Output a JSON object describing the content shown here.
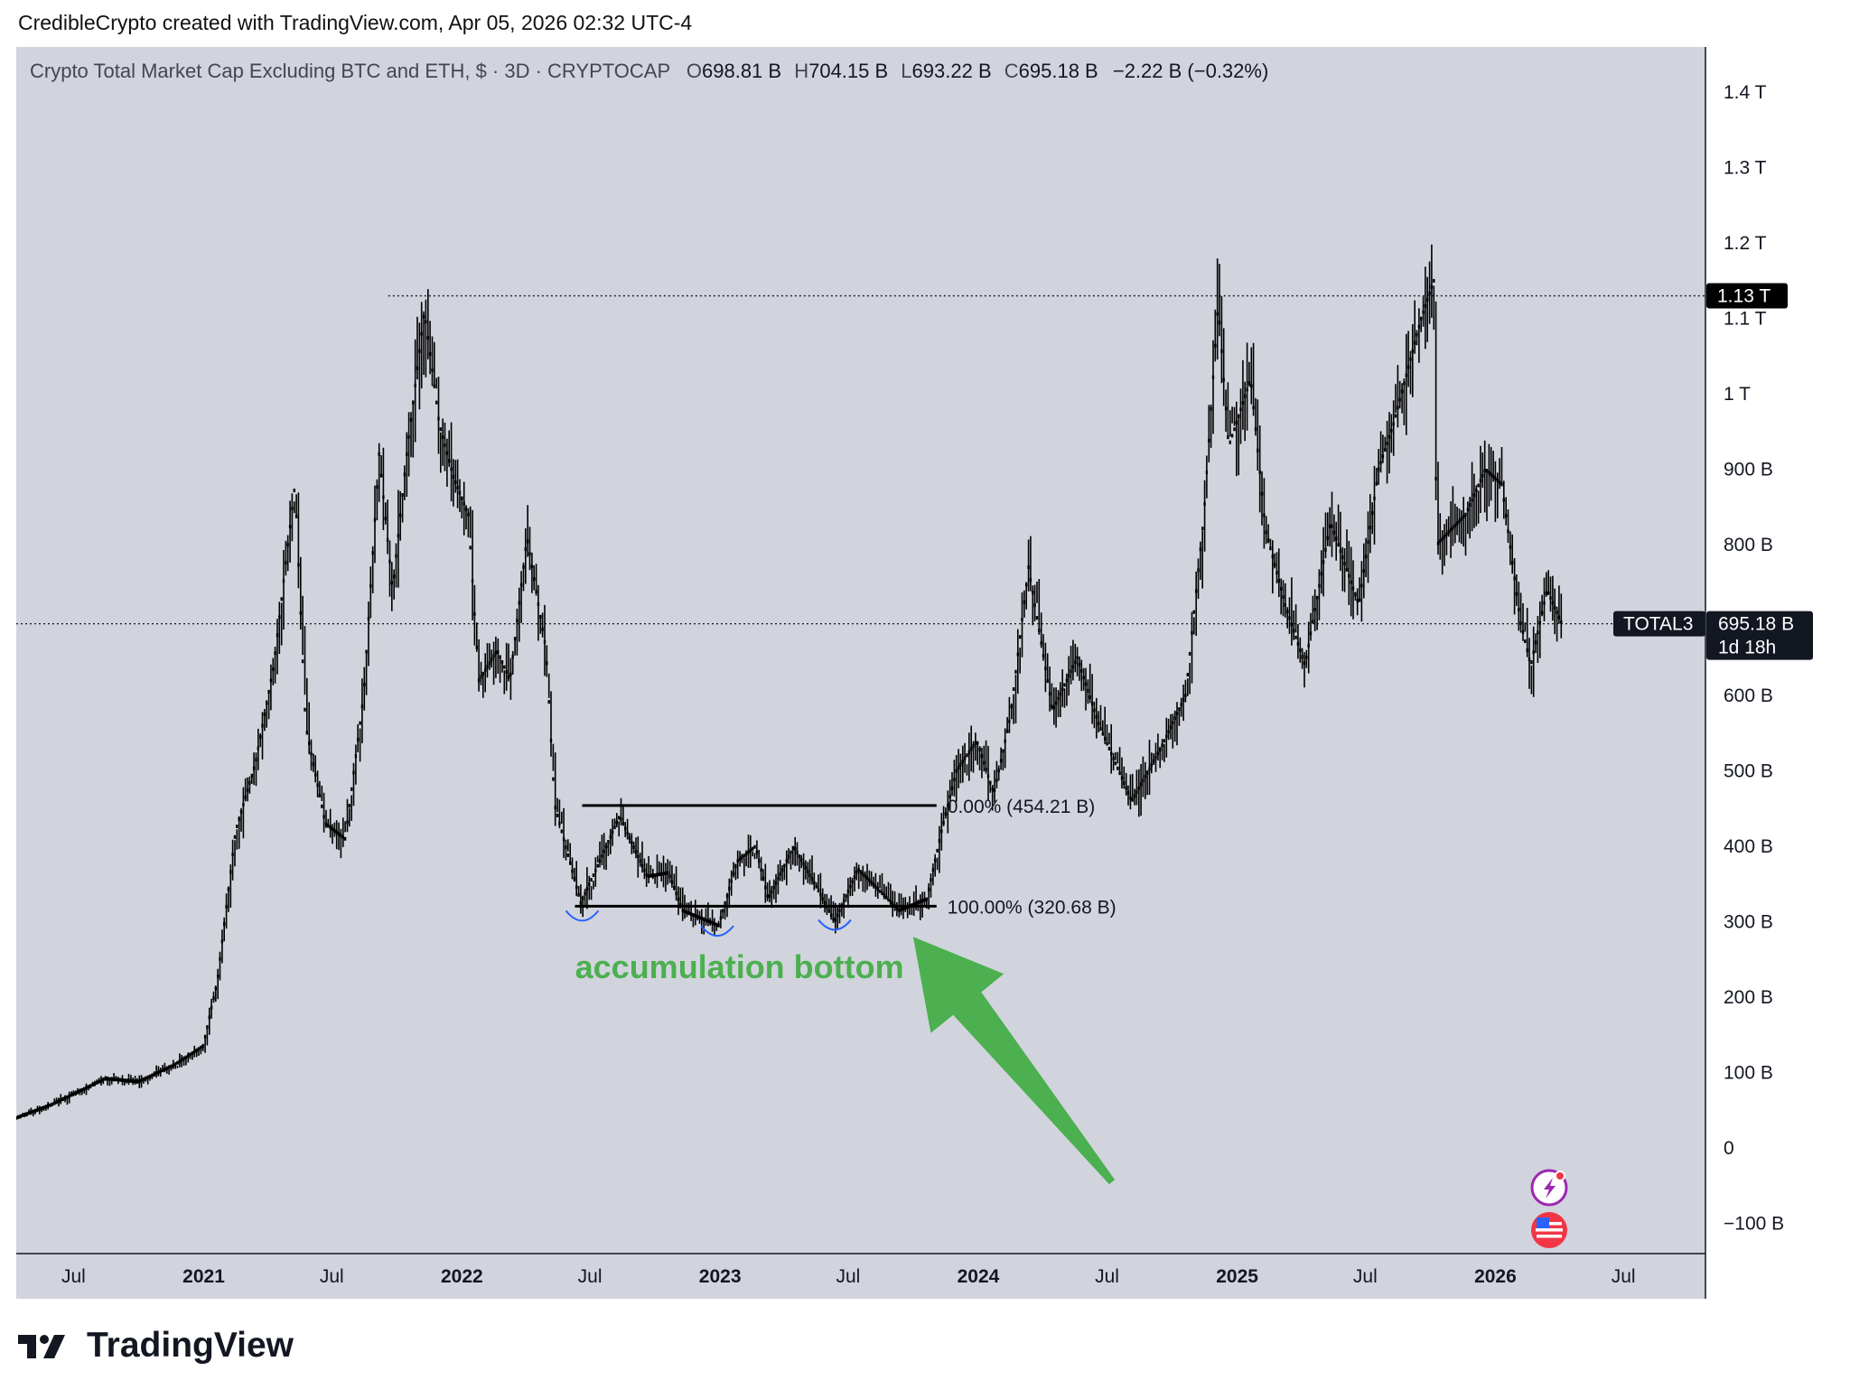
{
  "header": {
    "caption": "CredibleCrypto created with TradingView.com, Apr 05, 2026 02:32 UTC-4"
  },
  "legend": {
    "symbol": "Crypto Total Market Cap Excluding BTC and ETH, $ · 3D · CRYPTOCAP",
    "o_label": "O",
    "o_value": "698.81 B",
    "h_label": "H",
    "h_value": "704.15 B",
    "l_label": "L",
    "l_value": "693.22 B",
    "c_label": "C",
    "c_value": "695.18 B",
    "change": "−2.22 B (−0.32%)"
  },
  "price_tags": {
    "resistance_value": "1.13 T",
    "ticker": "TOTAL3",
    "current_value": "695.18 B",
    "countdown": "1d 18h"
  },
  "annotations": {
    "fib_top": "0.00% (454.21 B)",
    "fib_bottom": "100.00% (320.68 B)",
    "note": "accumulation bottom"
  },
  "footer": {
    "brand": "TradingView"
  },
  "colors": {
    "background": "#d1d4dc",
    "candle": "#000000",
    "annotation_green": "#4caf50",
    "bottom_marks": "#2962ff",
    "axis_text": "#131722"
  },
  "chart_data": {
    "type": "candlestick",
    "title": "Crypto Total Market Cap Excluding BTC and ETH",
    "interval": "3D",
    "y_ticks": [
      -100,
      0,
      100,
      200,
      300,
      400,
      500,
      600,
      800,
      900,
      1000,
      1100,
      1200,
      1300,
      1400
    ],
    "y_tick_labels": [
      "−100 B",
      "0",
      "100 B",
      "200 B",
      "300 B",
      "400 B",
      "500 B",
      "600 B",
      "800 B",
      "900 B",
      "1 T",
      "1.1 T",
      "1.2 T",
      "1.3 T",
      "1.4 T"
    ],
    "y_unit": "billion USD",
    "ylim": [
      -140,
      1460
    ],
    "xlim": [
      "2020-04-11",
      "2026-10-25"
    ],
    "x_ticks": [
      {
        "date": "2020-07-01",
        "label": "Jul",
        "bold": false
      },
      {
        "date": "2021-01-01",
        "label": "2021",
        "bold": true
      },
      {
        "date": "2021-07-01",
        "label": "Jul",
        "bold": false
      },
      {
        "date": "2022-01-01",
        "label": "2022",
        "bold": true
      },
      {
        "date": "2022-07-01",
        "label": "Jul",
        "bold": false
      },
      {
        "date": "2023-01-01",
        "label": "2023",
        "bold": true
      },
      {
        "date": "2023-07-01",
        "label": "Jul",
        "bold": false
      },
      {
        "date": "2024-01-01",
        "label": "2024",
        "bold": true
      },
      {
        "date": "2024-07-01",
        "label": "Jul",
        "bold": false
      },
      {
        "date": "2025-01-01",
        "label": "2025",
        "bold": true
      },
      {
        "date": "2025-07-01",
        "label": "Jul",
        "bold": false
      },
      {
        "date": "2026-01-01",
        "label": "2026",
        "bold": true
      },
      {
        "date": "2026-07-01",
        "label": "Jul",
        "bold": false
      }
    ],
    "price_path": [
      [
        "2020-04-11",
        40
      ],
      [
        "2020-06-01",
        58
      ],
      [
        "2020-08-15",
        92
      ],
      [
        "2020-10-01",
        88
      ],
      [
        "2020-11-20",
        110
      ],
      [
        "2020-12-31",
        135
      ],
      [
        "2021-01-20",
        220
      ],
      [
        "2021-02-15",
        420
      ],
      [
        "2021-03-15",
        510
      ],
      [
        "2021-04-10",
        640
      ],
      [
        "2021-05-10",
        880
      ],
      [
        "2021-05-25",
        560
      ],
      [
        "2021-06-22",
        430
      ],
      [
        "2021-07-20",
        410
      ],
      [
        "2021-08-15",
        600
      ],
      [
        "2021-09-06",
        920
      ],
      [
        "2021-09-25",
        740
      ],
      [
        "2021-10-15",
        920
      ],
      [
        "2021-11-09",
        1110
      ],
      [
        "2021-11-30",
        960
      ],
      [
        "2021-12-20",
        890
      ],
      [
        "2022-01-10",
        840
      ],
      [
        "2022-01-25",
        620
      ],
      [
        "2022-02-20",
        660
      ],
      [
        "2022-03-10",
        620
      ],
      [
        "2022-04-03",
        810
      ],
      [
        "2022-04-30",
        660
      ],
      [
        "2022-05-12",
        455
      ],
      [
        "2022-06-18",
        325
      ],
      [
        "2022-07-10",
        370
      ],
      [
        "2022-08-12",
        440
      ],
      [
        "2022-09-20",
        360
      ],
      [
        "2022-10-20",
        365
      ],
      [
        "2022-11-09",
        315
      ],
      [
        "2022-12-30",
        295
      ],
      [
        "2023-01-25",
        380
      ],
      [
        "2023-02-20",
        400
      ],
      [
        "2023-03-10",
        330
      ],
      [
        "2023-04-15",
        400
      ],
      [
        "2023-05-15",
        350
      ],
      [
        "2023-06-12",
        300
      ],
      [
        "2023-07-15",
        370
      ],
      [
        "2023-09-11",
        315
      ],
      [
        "2023-10-20",
        330
      ],
      [
        "2023-11-10",
        420
      ],
      [
        "2023-12-01",
        500
      ],
      [
        "2023-12-30",
        540
      ],
      [
        "2024-01-23",
        470
      ],
      [
        "2024-02-15",
        570
      ],
      [
        "2024-03-12",
        770
      ],
      [
        "2024-04-15",
        580
      ],
      [
        "2024-05-20",
        650
      ],
      [
        "2024-06-20",
        560
      ],
      [
        "2024-08-05",
        460
      ],
      [
        "2024-09-15",
        530
      ],
      [
        "2024-10-20",
        600
      ],
      [
        "2024-11-15",
        840
      ],
      [
        "2024-12-05",
        1120
      ],
      [
        "2024-12-20",
        930
      ],
      [
        "2025-01-20",
        1020
      ],
      [
        "2025-02-10",
        820
      ],
      [
        "2025-03-10",
        720
      ],
      [
        "2025-04-07",
        640
      ],
      [
        "2025-05-13",
        830
      ],
      [
        "2025-06-22",
        720
      ],
      [
        "2025-07-20",
        900
      ],
      [
        "2025-08-10",
        960
      ],
      [
        "2025-09-18",
        1100
      ],
      [
        "2025-10-06",
        1150
      ],
      [
        "2025-10-10",
        800
      ],
      [
        "2025-11-20",
        840
      ],
      [
        "2025-12-18",
        900
      ],
      [
        "2026-01-10",
        880
      ],
      [
        "2026-02-05",
        700
      ],
      [
        "2026-02-20",
        640
      ],
      [
        "2026-03-15",
        740
      ],
      [
        "2026-04-05",
        695.18
      ]
    ],
    "horizontal_lines": [
      {
        "kind": "ath-resistance",
        "value": 1130,
        "from": "2021-11-09",
        "dotted": true
      },
      {
        "kind": "current-price",
        "value": 695.18,
        "dotted": true
      }
    ],
    "fib_range": {
      "from": "2022-06-20",
      "to": "2023-11-03",
      "top": 454.21,
      "bottom": 320.68
    },
    "bottom_marks": [
      {
        "date": "2022-06-20",
        "value": 305
      },
      {
        "date": "2022-12-28",
        "value": 285
      },
      {
        "date": "2023-06-12",
        "value": 293
      }
    ],
    "arrow": {
      "tail": [
        "2024-07-08",
        -45
      ],
      "head": [
        "2023-10-01",
        280
      ]
    },
    "label_anchor": [
      "2022-06-10",
      225
    ]
  }
}
